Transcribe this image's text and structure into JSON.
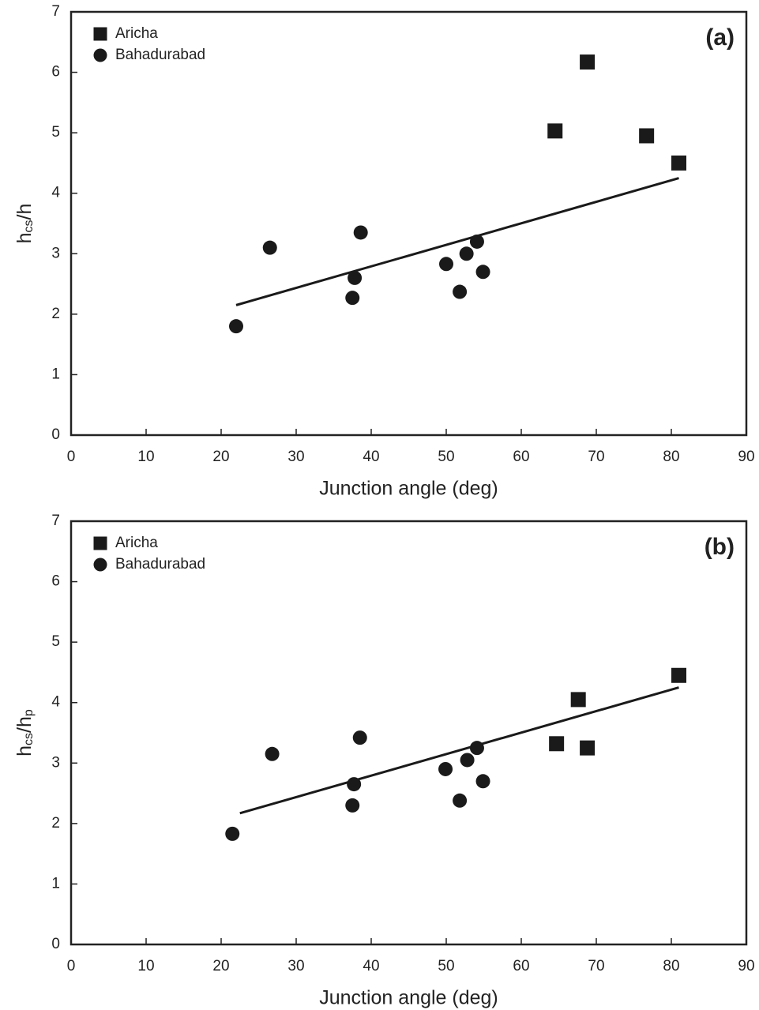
{
  "chart_data": [
    {
      "type": "scatter",
      "panel_label": "(a)",
      "x_label": "Junction angle (deg)",
      "y_label_parts": [
        "h",
        "cs",
        "/h"
      ],
      "xlim": [
        0,
        90
      ],
      "ylim": [
        0,
        7
      ],
      "xticks": [
        0,
        10,
        20,
        30,
        40,
        50,
        60,
        70,
        80,
        90
      ],
      "yticks": [
        0,
        1,
        2,
        3,
        4,
        5,
        6,
        7
      ],
      "legend": "upper left",
      "series": [
        {
          "name": "Aricha",
          "marker": "square",
          "color": "#1a1a1a",
          "x": [
            64.5,
            68.8,
            76.7,
            81
          ],
          "y": [
            5.03,
            6.17,
            4.95,
            4.5
          ]
        },
        {
          "name": "Bahadurabad",
          "marker": "circle",
          "color": "#1a1a1a",
          "x": [
            22,
            26.5,
            37.8,
            37.5,
            38.6,
            50,
            51.8,
            52.7,
            54.1,
            54.9
          ],
          "y": [
            1.8,
            3.1,
            2.6,
            2.27,
            3.35,
            2.83,
            2.37,
            3.0,
            3.2,
            2.7
          ]
        }
      ],
      "trend_line": {
        "color": "#1a1a1a",
        "x": [
          22,
          81
        ],
        "y": [
          2.15,
          4.25
        ]
      }
    },
    {
      "type": "scatter",
      "panel_label": "(b)",
      "x_label": "Junction angle (deg)",
      "y_label_parts": [
        "h",
        "cs",
        "/h",
        "p"
      ],
      "xlim": [
        0,
        90
      ],
      "ylim": [
        0,
        7
      ],
      "xticks": [
        0,
        10,
        20,
        30,
        40,
        50,
        60,
        70,
        80,
        90
      ],
      "yticks": [
        0,
        1,
        2,
        3,
        4,
        5,
        6,
        7
      ],
      "legend": "upper left",
      "series": [
        {
          "name": "Aricha",
          "marker": "square",
          "color": "#1a1a1a",
          "x": [
            64.7,
            67.6,
            68.8,
            81
          ],
          "y": [
            3.32,
            4.05,
            3.25,
            4.45
          ]
        },
        {
          "name": "Bahadurabad",
          "marker": "circle",
          "color": "#1a1a1a",
          "x": [
            21.5,
            26.8,
            37.7,
            37.5,
            38.5,
            49.9,
            51.8,
            52.8,
            54.1,
            54.9
          ],
          "y": [
            1.83,
            3.15,
            2.65,
            2.3,
            3.42,
            2.9,
            2.38,
            3.05,
            3.25,
            2.7
          ]
        }
      ],
      "trend_line": {
        "color": "#1a1a1a",
        "x": [
          22.5,
          81
        ],
        "y": [
          2.17,
          4.25
        ]
      }
    }
  ]
}
